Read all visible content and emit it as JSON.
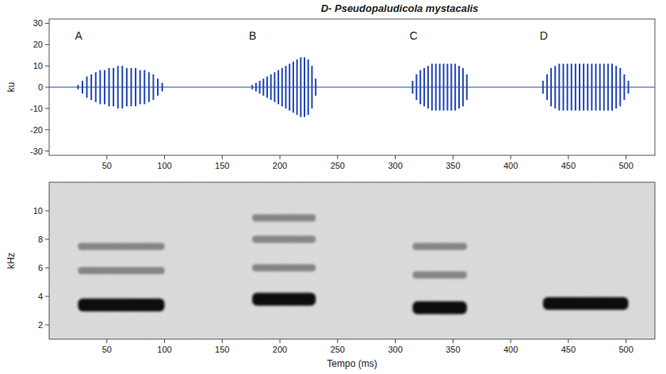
{
  "chart_data": [
    {
      "type": "waveform",
      "title": "D- Pseudopaludicola mystacalis",
      "y_label": "ku",
      "color": "#2347b8",
      "xlim": [
        0,
        525
      ],
      "xticks": [
        50,
        100,
        150,
        200,
        250,
        300,
        350,
        400,
        450,
        500
      ],
      "ylim": [
        -32,
        32
      ],
      "yticks": [
        -30,
        -20,
        -10,
        0,
        10,
        20,
        30
      ],
      "notes": [
        {
          "label": "A",
          "start": 25,
          "end": 98,
          "pulses": [
            1,
            3,
            5,
            6,
            7,
            8,
            8,
            9,
            9,
            10,
            10,
            9,
            9,
            9,
            8,
            8,
            7,
            6,
            4,
            2
          ]
        },
        {
          "label": "B",
          "start": 176,
          "end": 231,
          "pulses": [
            1,
            2,
            3,
            4,
            5,
            6,
            7,
            8,
            9,
            10,
            11,
            12,
            13,
            14,
            14,
            13,
            10,
            4
          ]
        },
        {
          "label": "C",
          "start": 315,
          "end": 362,
          "pulses": [
            3,
            6,
            8,
            9,
            10,
            11,
            11,
            11,
            11,
            11,
            11,
            11,
            10,
            9,
            6
          ]
        },
        {
          "label": "D",
          "start": 428,
          "end": 502,
          "pulses": [
            3,
            6,
            9,
            10,
            11,
            11,
            11,
            11,
            11,
            11,
            11,
            11,
            11,
            11,
            11,
            11,
            11,
            11,
            10,
            9,
            6,
            3
          ]
        }
      ]
    },
    {
      "type": "spectrogram",
      "x_label": "Tempo (ms)",
      "y_label": "kHz",
      "xlim": [
        0,
        525
      ],
      "xticks": [
        50,
        100,
        150,
        200,
        250,
        300,
        350,
        400,
        450,
        500
      ],
      "ylim": [
        1,
        12
      ],
      "yticks": [
        2,
        4,
        6,
        8,
        10
      ],
      "notes": [
        {
          "start": 25,
          "end": 100,
          "dominant_khz": 3.4,
          "harmonics_khz": [
            5.8,
            7.5
          ]
        },
        {
          "start": 176,
          "end": 231,
          "dominant_khz": 3.8,
          "harmonics_khz": [
            6.0,
            8.0,
            9.5
          ]
        },
        {
          "start": 315,
          "end": 362,
          "dominant_khz": 3.2,
          "harmonics_khz": [
            5.5,
            7.5
          ]
        },
        {
          "start": 428,
          "end": 502,
          "dominant_khz": 3.5,
          "harmonics_khz": []
        }
      ]
    }
  ]
}
